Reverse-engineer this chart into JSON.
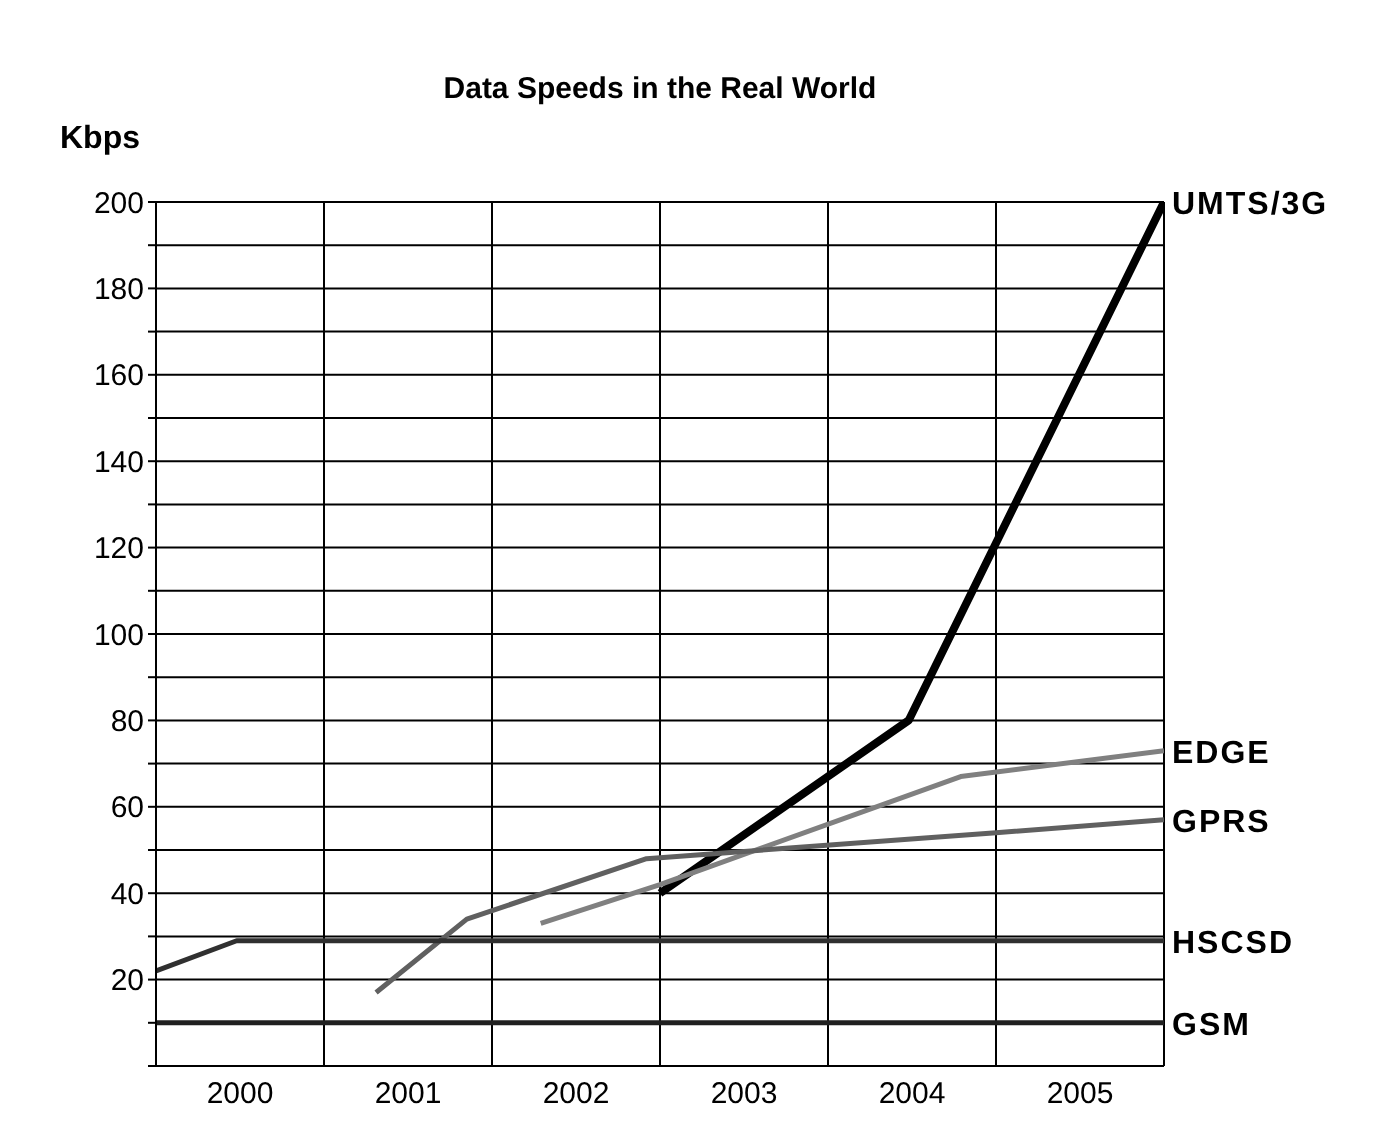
{
  "chart_data": {
    "type": "line",
    "title": "Data Speeds in the Real World",
    "ylabel": "Kbps",
    "series": [
      {
        "name": "UMTS/3G",
        "color": "#000000",
        "x": [
          2003.0,
          2004.48,
          2006
        ],
        "values": [
          40,
          80,
          200
        ]
      },
      {
        "name": "EDGE",
        "color": "#808080",
        "x": [
          2002.29,
          2003.0,
          2004.79,
          2006
        ],
        "values": [
          33,
          42,
          67,
          73
        ]
      },
      {
        "name": "GPRS",
        "color": "#606060",
        "x": [
          2001.31,
          2001.85,
          2002.92,
          2005,
          2006
        ],
        "values": [
          17,
          34,
          48,
          54,
          57
        ]
      },
      {
        "name": "HSCSD",
        "color": "#303030",
        "x": [
          2000,
          2000.48,
          2006
        ],
        "values": [
          22,
          29,
          29
        ]
      },
      {
        "name": "GSM",
        "color": "#202020",
        "x": [
          2000,
          2006
        ],
        "values": [
          10,
          10
        ]
      }
    ],
    "xlim": [
      2000,
      2006
    ],
    "xticks": [
      {
        "value": 2000,
        "label": null
      },
      {
        "value": 2000.5,
        "label": "2000"
      },
      {
        "value": 2001,
        "label": null
      },
      {
        "value": 2001.5,
        "label": "2001"
      },
      {
        "value": 2002,
        "label": null
      },
      {
        "value": 2002.5,
        "label": "2002"
      },
      {
        "value": 2003,
        "label": null
      },
      {
        "value": 2003.5,
        "label": "2003"
      },
      {
        "value": 2004,
        "label": null
      },
      {
        "value": 2004.5,
        "label": "2004"
      },
      {
        "value": 2005,
        "label": null
      },
      {
        "value": 2005.5,
        "label": "2005"
      },
      {
        "value": 2006,
        "label": null
      }
    ],
    "ylim": [
      0,
      200
    ],
    "yticks": [
      {
        "value": 0,
        "label": null
      },
      {
        "value": 10,
        "label": null
      },
      20,
      {
        "value": 30,
        "label": null
      },
      40,
      {
        "value": 50,
        "label": null
      },
      60,
      {
        "value": 70,
        "label": null
      },
      80,
      {
        "value": 90,
        "label": null
      },
      100,
      {
        "value": 110,
        "label": null
      },
      120,
      {
        "value": 130,
        "label": null
      },
      140,
      {
        "value": 150,
        "label": null
      },
      160,
      {
        "value": 170,
        "label": null
      },
      180,
      {
        "value": 190,
        "label": null
      },
      200
    ],
    "grid": true,
    "marker": "none",
    "line_style": "solid"
  }
}
